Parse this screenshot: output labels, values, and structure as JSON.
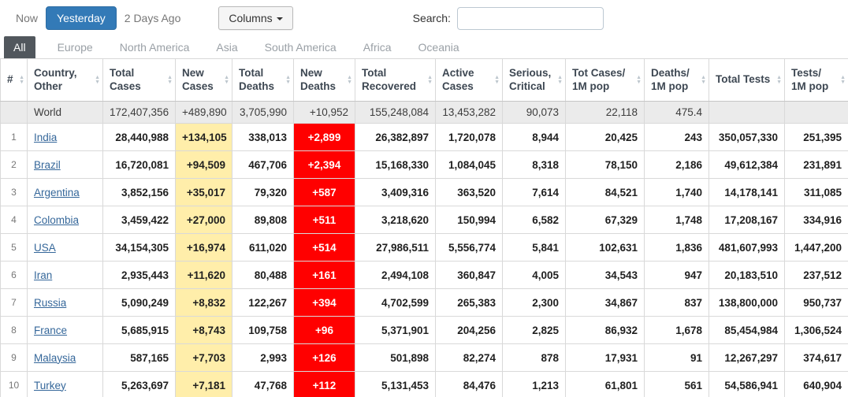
{
  "toolbar": {
    "now": "Now",
    "yesterday": "Yesterday",
    "two_days_ago": "2 Days Ago",
    "columns": "Columns",
    "search_label": "Search:",
    "search_value": ""
  },
  "tabs": [
    {
      "label": "All",
      "active": true
    },
    {
      "label": "Europe",
      "active": false
    },
    {
      "label": "North America",
      "active": false
    },
    {
      "label": "Asia",
      "active": false
    },
    {
      "label": "South America",
      "active": false
    },
    {
      "label": "Africa",
      "active": false
    },
    {
      "label": "Oceania",
      "active": false
    }
  ],
  "colors": {
    "active_button": "#337ab7",
    "active_tab": "#51575d",
    "new_cases_bg": "#ffeeaa",
    "new_deaths_bg": "#ff0000",
    "new_deaths_text": "#ffffff",
    "country_link": "#35679a",
    "world_row_bg": "#ebebeb"
  },
  "table": {
    "columns": [
      "#",
      "Country, Other",
      "Total Cases",
      "New Cases",
      "Total Deaths",
      "New Deaths",
      "Total Recovered",
      "Active Cases",
      "Serious, Critical",
      "Tot Cases/ 1M pop",
      "Deaths/ 1M pop",
      "Total Tests",
      "Tests/ 1M pop"
    ],
    "world_row": {
      "rank": "",
      "country": "World",
      "total_cases": "172,407,356",
      "new_cases": "+489,890",
      "total_deaths": "3,705,990",
      "new_deaths": "+10,952",
      "total_recovered": "155,248,084",
      "active_cases": "13,453,282",
      "serious_critical": "90,073",
      "tot_cases_1m": "22,118",
      "deaths_1m": "475.4",
      "total_tests": "",
      "tests_1m": ""
    },
    "rows": [
      {
        "rank": 1,
        "country": "India",
        "total_cases": "28,440,988",
        "new_cases": "+134,105",
        "total_deaths": "338,013",
        "new_deaths": "+2,899",
        "total_recovered": "26,382,897",
        "active_cases": "1,720,078",
        "serious_critical": "8,944",
        "tot_cases_1m": "20,425",
        "deaths_1m": "243",
        "total_tests": "350,057,330",
        "tests_1m": "251,395"
      },
      {
        "rank": 2,
        "country": "Brazil",
        "total_cases": "16,720,081",
        "new_cases": "+94,509",
        "total_deaths": "467,706",
        "new_deaths": "+2,394",
        "total_recovered": "15,168,330",
        "active_cases": "1,084,045",
        "serious_critical": "8,318",
        "tot_cases_1m": "78,150",
        "deaths_1m": "2,186",
        "total_tests": "49,612,384",
        "tests_1m": "231,891"
      },
      {
        "rank": 3,
        "country": "Argentina",
        "total_cases": "3,852,156",
        "new_cases": "+35,017",
        "total_deaths": "79,320",
        "new_deaths": "+587",
        "total_recovered": "3,409,316",
        "active_cases": "363,520",
        "serious_critical": "7,614",
        "tot_cases_1m": "84,521",
        "deaths_1m": "1,740",
        "total_tests": "14,178,141",
        "tests_1m": "311,085"
      },
      {
        "rank": 4,
        "country": "Colombia",
        "total_cases": "3,459,422",
        "new_cases": "+27,000",
        "total_deaths": "89,808",
        "new_deaths": "+511",
        "total_recovered": "3,218,620",
        "active_cases": "150,994",
        "serious_critical": "6,582",
        "tot_cases_1m": "67,329",
        "deaths_1m": "1,748",
        "total_tests": "17,208,167",
        "tests_1m": "334,916"
      },
      {
        "rank": 5,
        "country": "USA",
        "total_cases": "34,154,305",
        "new_cases": "+16,974",
        "total_deaths": "611,020",
        "new_deaths": "+514",
        "total_recovered": "27,986,511",
        "active_cases": "5,556,774",
        "serious_critical": "5,841",
        "tot_cases_1m": "102,631",
        "deaths_1m": "1,836",
        "total_tests": "481,607,993",
        "tests_1m": "1,447,200"
      },
      {
        "rank": 6,
        "country": "Iran",
        "total_cases": "2,935,443",
        "new_cases": "+11,620",
        "total_deaths": "80,488",
        "new_deaths": "+161",
        "total_recovered": "2,494,108",
        "active_cases": "360,847",
        "serious_critical": "4,005",
        "tot_cases_1m": "34,543",
        "deaths_1m": "947",
        "total_tests": "20,183,510",
        "tests_1m": "237,512"
      },
      {
        "rank": 7,
        "country": "Russia",
        "total_cases": "5,090,249",
        "new_cases": "+8,832",
        "total_deaths": "122,267",
        "new_deaths": "+394",
        "total_recovered": "4,702,599",
        "active_cases": "265,383",
        "serious_critical": "2,300",
        "tot_cases_1m": "34,867",
        "deaths_1m": "837",
        "total_tests": "138,800,000",
        "tests_1m": "950,737"
      },
      {
        "rank": 8,
        "country": "France",
        "total_cases": "5,685,915",
        "new_cases": "+8,743",
        "total_deaths": "109,758",
        "new_deaths": "+96",
        "total_recovered": "5,371,901",
        "active_cases": "204,256",
        "serious_critical": "2,825",
        "tot_cases_1m": "86,932",
        "deaths_1m": "1,678",
        "total_tests": "85,454,984",
        "tests_1m": "1,306,524"
      },
      {
        "rank": 9,
        "country": "Malaysia",
        "total_cases": "587,165",
        "new_cases": "+7,703",
        "total_deaths": "2,993",
        "new_deaths": "+126",
        "total_recovered": "501,898",
        "active_cases": "82,274",
        "serious_critical": "878",
        "tot_cases_1m": "17,931",
        "deaths_1m": "91",
        "total_tests": "12,267,297",
        "tests_1m": "374,617"
      },
      {
        "rank": 10,
        "country": "Turkey",
        "total_cases": "5,263,697",
        "new_cases": "+7,181",
        "total_deaths": "47,768",
        "new_deaths": "+112",
        "total_recovered": "5,131,453",
        "active_cases": "84,476",
        "serious_critical": "1,213",
        "tot_cases_1m": "61,801",
        "deaths_1m": "561",
        "total_tests": "54,586,941",
        "tests_1m": "640,904"
      }
    ]
  }
}
